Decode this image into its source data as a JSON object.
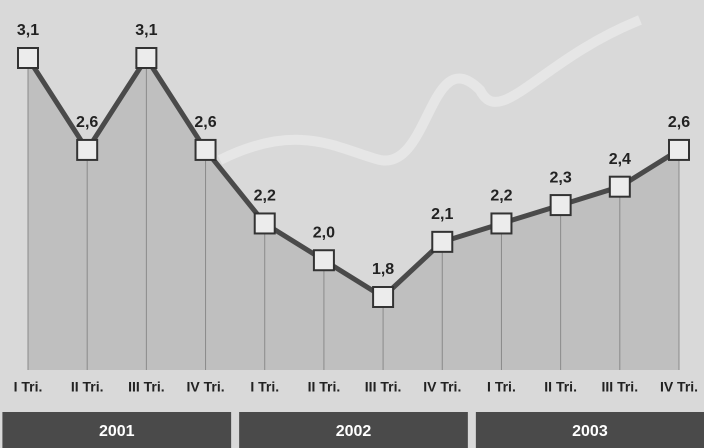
{
  "chart_data": {
    "type": "line",
    "categories": [
      "I Tri.",
      "II Tri.",
      "III Tri.",
      "IV Tri.",
      "I Tri.",
      "II Tri.",
      "III Tri.",
      "IV Tri.",
      "I Tri.",
      "II Tri.",
      "III Tri.",
      "IV Tri."
    ],
    "groups": [
      "2001",
      "2002",
      "2003"
    ],
    "values": [
      3.1,
      2.6,
      3.1,
      2.6,
      2.2,
      2.0,
      1.8,
      2.1,
      2.2,
      2.3,
      2.4,
      2.6
    ],
    "value_labels": [
      "3,1",
      "2,6",
      "3,1",
      "2,6",
      "2,2",
      "2,0",
      "1,8",
      "2,1",
      "2,2",
      "2,3",
      "2,4",
      "2,6"
    ],
    "color": "#4a4a4a"
  }
}
